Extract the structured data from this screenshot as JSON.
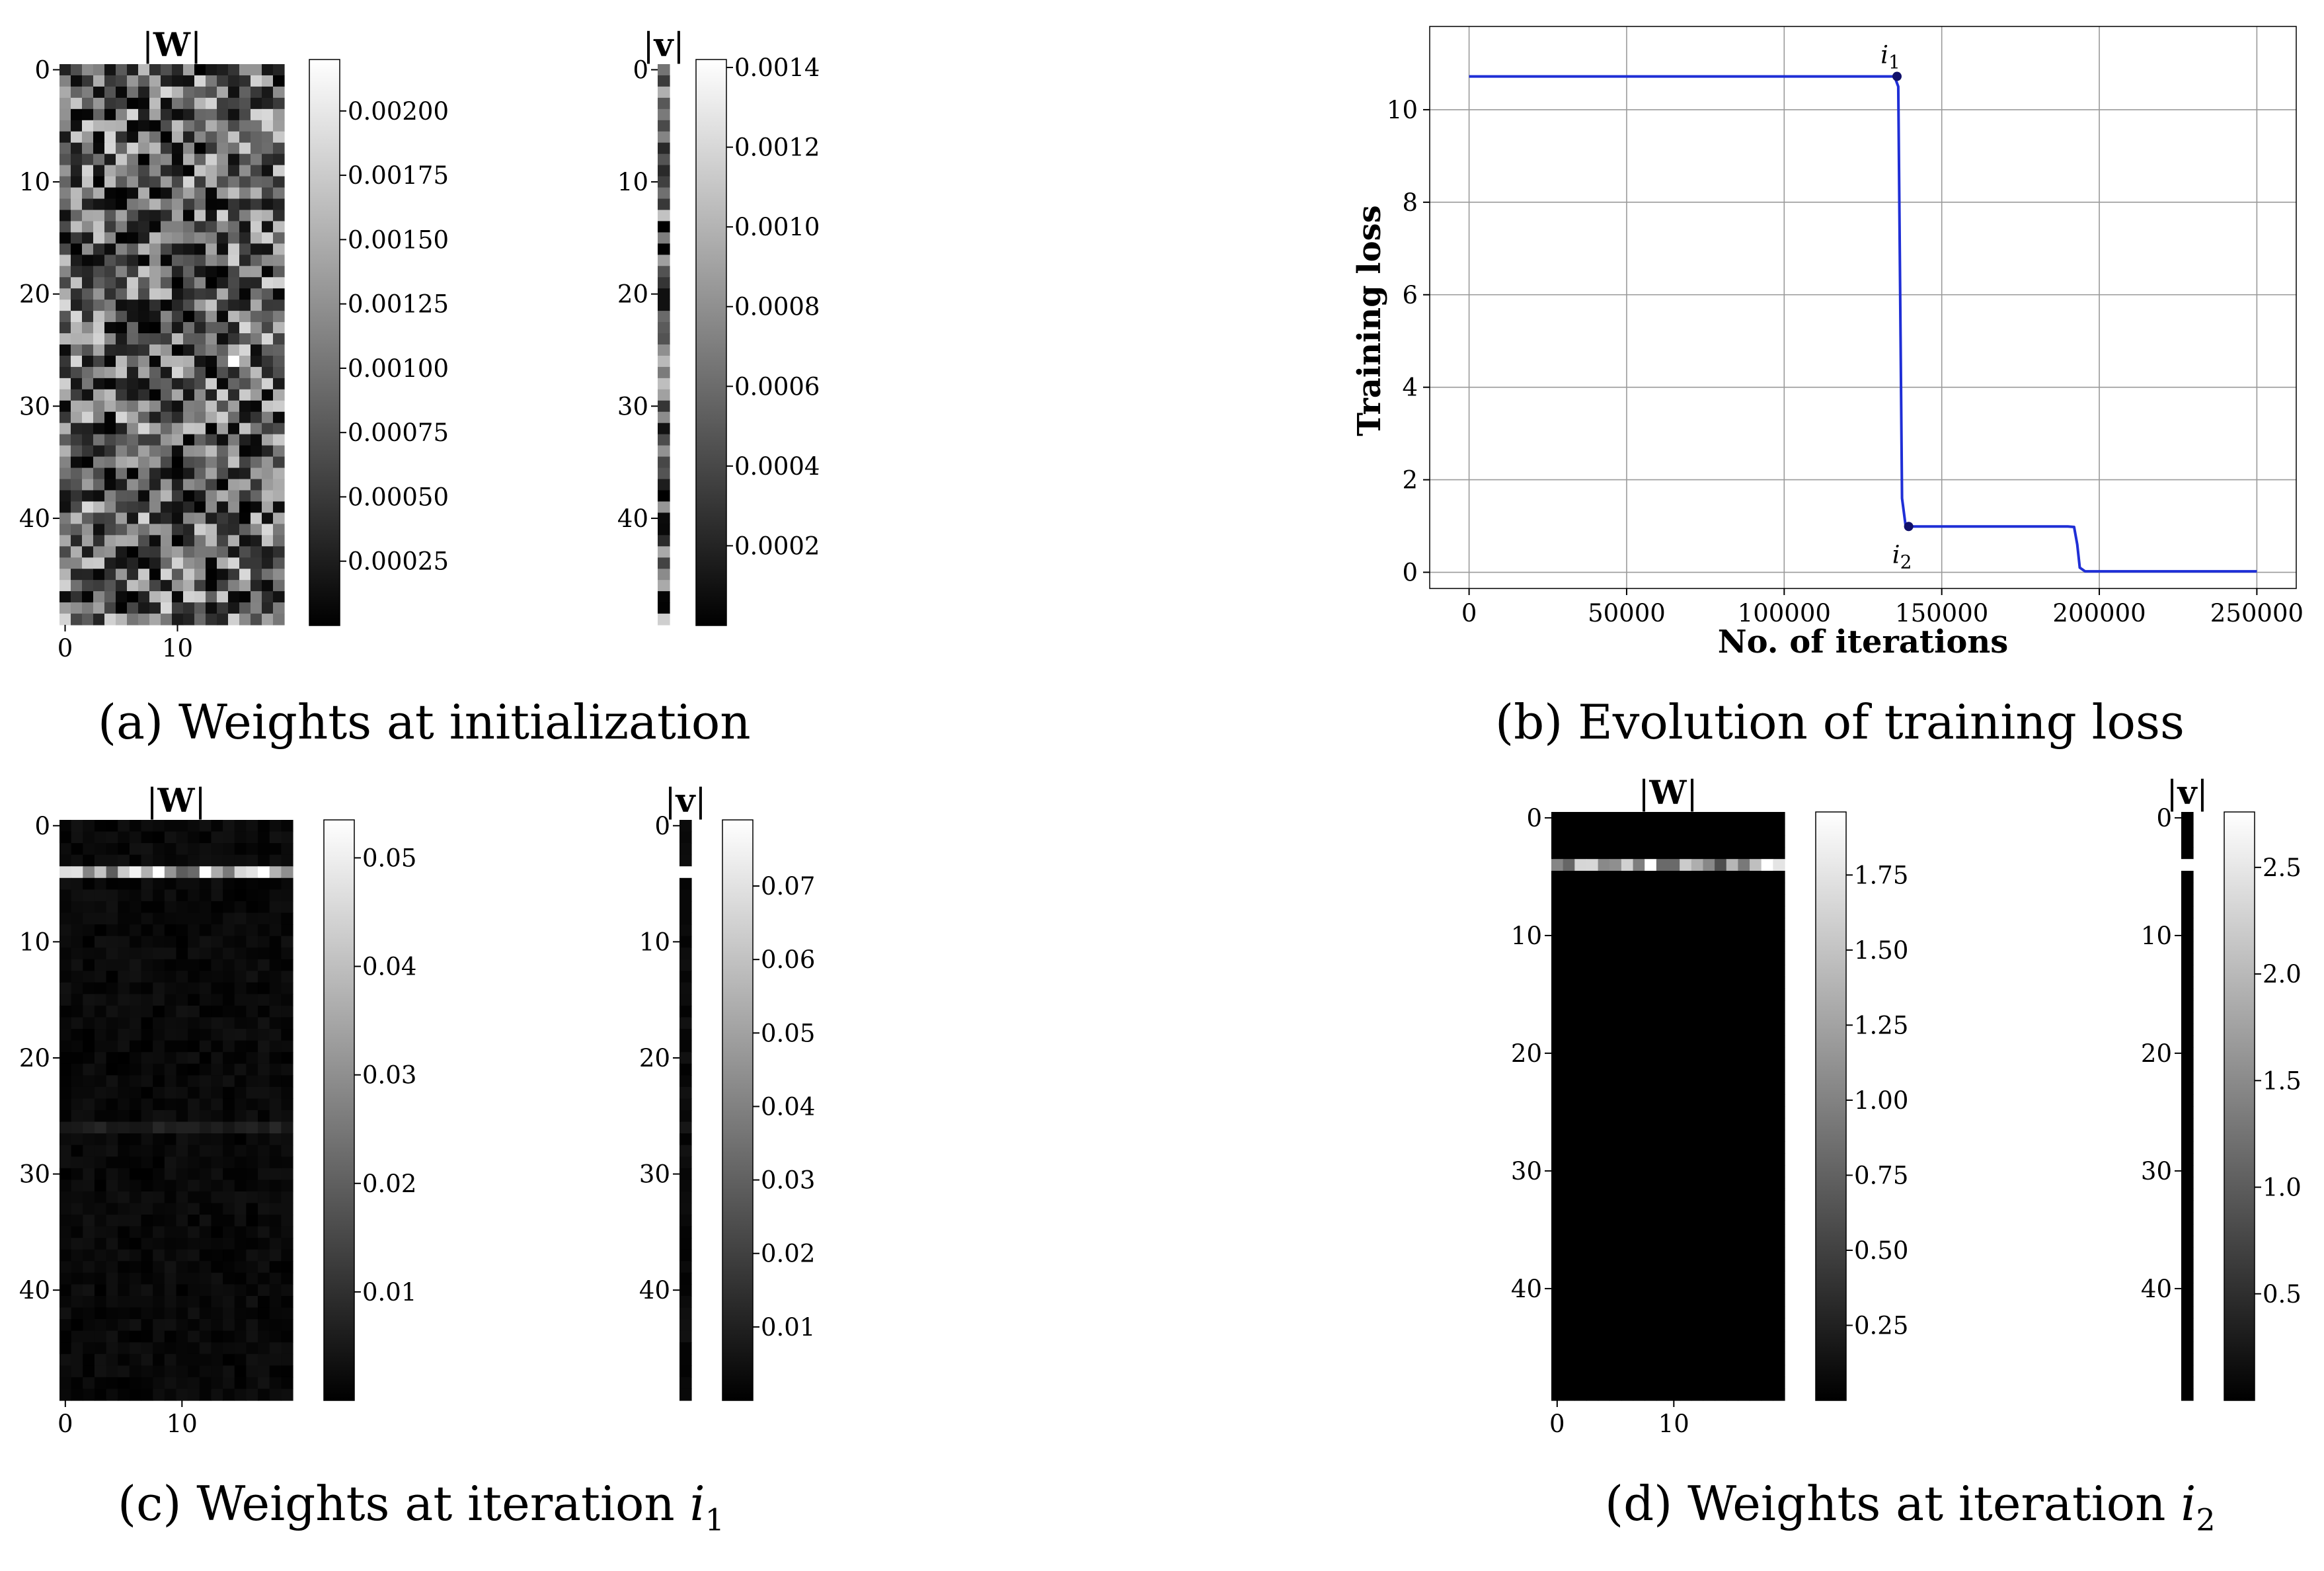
{
  "chart_data": [
    {
      "id": "a",
      "type": "heatmap",
      "caption": "(a) Weights at initialization",
      "W": {
        "title": "|W|",
        "rows": 50,
        "cols": 20,
        "xticks": [
          0,
          10
        ],
        "yticks": [
          0,
          10,
          20,
          30,
          40
        ],
        "pattern": "random",
        "colorbar": {
          "min": 0,
          "max": 0.0022,
          "ticks": [
            "0.00025",
            "0.00050",
            "0.00075",
            "0.00100",
            "0.00125",
            "0.00150",
            "0.00175",
            "0.00200"
          ],
          "values": [
            0.00025,
            0.0005,
            0.00075,
            0.001,
            0.00125,
            0.0015,
            0.00175,
            0.002
          ]
        }
      },
      "v": {
        "title": "|v|",
        "rows": 50,
        "yticks": [
          0,
          10,
          20,
          30,
          40
        ],
        "pattern": "random",
        "colorbar": {
          "min": 0,
          "max": 0.00142,
          "ticks": [
            "0.0002",
            "0.0004",
            "0.0006",
            "0.0008",
            "0.0010",
            "0.0012",
            "0.0014"
          ],
          "values": [
            0.0002,
            0.0004,
            0.0006,
            0.0008,
            0.001,
            0.0012,
            0.0014
          ]
        }
      }
    },
    {
      "id": "b",
      "type": "line",
      "caption": "(b) Evolution of training loss",
      "xlabel": "No. of iterations",
      "ylabel": "Training loss",
      "xlim": [
        -12500,
        262500
      ],
      "ylim": [
        -0.35,
        11.8
      ],
      "xticks": [
        0,
        50000,
        100000,
        150000,
        200000,
        250000
      ],
      "xtick_labels": [
        "0",
        "50000",
        "100000",
        "150000",
        "200000",
        "250000"
      ],
      "yticks": [
        0,
        2,
        4,
        6,
        8,
        10
      ],
      "ytick_labels": [
        "0",
        "2",
        "4",
        "6",
        "8",
        "10"
      ],
      "grid": true,
      "series": [
        {
          "name": "training loss",
          "color": "#1f2fd6",
          "x": [
            0,
            135000,
            136200,
            136800,
            137400,
            138500,
            139500,
            190000,
            192000,
            193000,
            193800,
            195500,
            250000
          ],
          "y": [
            10.72,
            10.72,
            10.5,
            6.0,
            1.6,
            1.02,
            0.99,
            0.99,
            0.98,
            0.6,
            0.1,
            0.02,
            0.02
          ]
        }
      ],
      "markers": [
        {
          "label": "i1",
          "x": 135800,
          "y": 10.72,
          "label_pos": "above"
        },
        {
          "label": "i2",
          "x": 139500,
          "y": 0.99,
          "label_pos": "below"
        }
      ]
    },
    {
      "id": "c",
      "type": "heatmap",
      "caption": "(c) Weights at iteration i1",
      "W": {
        "title": "|W|",
        "rows": 50,
        "cols": 20,
        "xticks": [
          0,
          10
        ],
        "yticks": [
          0,
          10,
          20,
          30,
          40
        ],
        "pattern": "row4",
        "colorbar": {
          "min": 0,
          "max": 0.0535,
          "ticks": [
            "0.01",
            "0.02",
            "0.03",
            "0.04",
            "0.05"
          ],
          "values": [
            0.01,
            0.02,
            0.03,
            0.04,
            0.05
          ]
        }
      },
      "v": {
        "title": "|v|",
        "rows": 50,
        "yticks": [
          0,
          10,
          20,
          30,
          40
        ],
        "pattern": "row4",
        "colorbar": {
          "min": 0,
          "max": 0.079,
          "ticks": [
            "0.01",
            "0.02",
            "0.03",
            "0.04",
            "0.05",
            "0.06",
            "0.07"
          ],
          "values": [
            0.01,
            0.02,
            0.03,
            0.04,
            0.05,
            0.06,
            0.07
          ]
        }
      }
    },
    {
      "id": "d",
      "type": "heatmap",
      "caption": "(d) Weights at iteration i2",
      "W": {
        "title": "|W|",
        "rows": 50,
        "cols": 20,
        "xticks": [
          0,
          10
        ],
        "yticks": [
          0,
          10,
          20,
          30,
          40
        ],
        "pattern": "row4clean",
        "colorbar": {
          "min": 0,
          "max": 1.96,
          "ticks": [
            "0.25",
            "0.50",
            "0.75",
            "1.00",
            "1.25",
            "1.50",
            "1.75"
          ],
          "values": [
            0.25,
            0.5,
            0.75,
            1.0,
            1.25,
            1.5,
            1.75
          ]
        }
      },
      "v": {
        "title": "|v|",
        "rows": 50,
        "yticks": [
          0,
          10,
          20,
          30,
          40
        ],
        "pattern": "row4clean",
        "colorbar": {
          "min": 0,
          "max": 2.76,
          "ticks": [
            "0.5",
            "1.0",
            "1.5",
            "2.0",
            "2.5"
          ],
          "values": [
            0.5,
            1.0,
            1.5,
            2.0,
            2.5
          ]
        }
      }
    }
  ]
}
